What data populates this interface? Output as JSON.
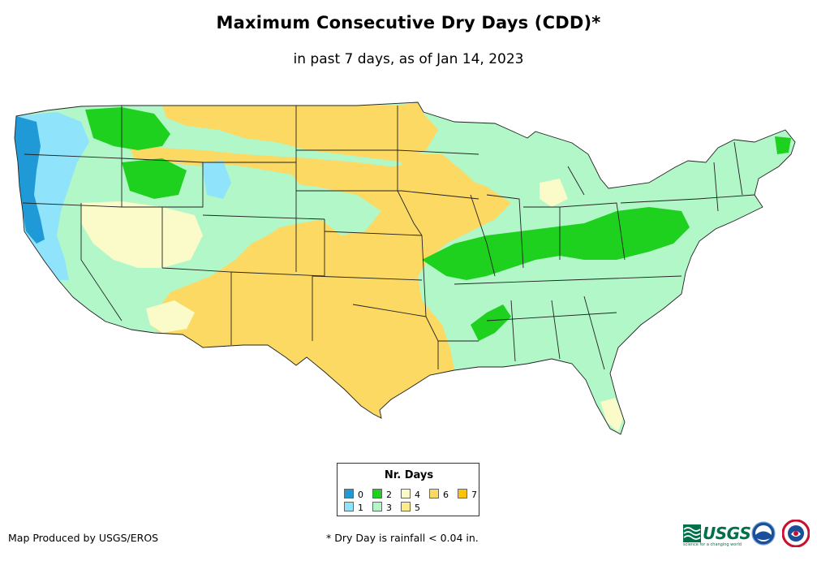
{
  "title": "Maximum Consecutive Dry Days (CDD)*",
  "subtitle": "in past 7 days, as of Jan 14, 2023",
  "legend": {
    "title": "Nr. Days",
    "items": [
      {
        "label": "0",
        "color": "#1f9ad6"
      },
      {
        "label": "1",
        "color": "#8fe3fb"
      },
      {
        "label": "2",
        "color": "#1fd11f"
      },
      {
        "label": "3",
        "color": "#b1f7c8"
      },
      {
        "label": "4",
        "color": "#fafbc8"
      },
      {
        "label": "5",
        "color": "#fdeb8a"
      },
      {
        "label": "6",
        "color": "#fcd962"
      },
      {
        "label": "7",
        "color": "#fcc400"
      }
    ]
  },
  "footer": {
    "producer": "Map Produced by USGS/EROS",
    "note": "* Dry Day is rainfall < 0.04 in."
  },
  "logos": {
    "usgs_text": "USGS",
    "usgs_tagline": "science for a changing world"
  }
}
